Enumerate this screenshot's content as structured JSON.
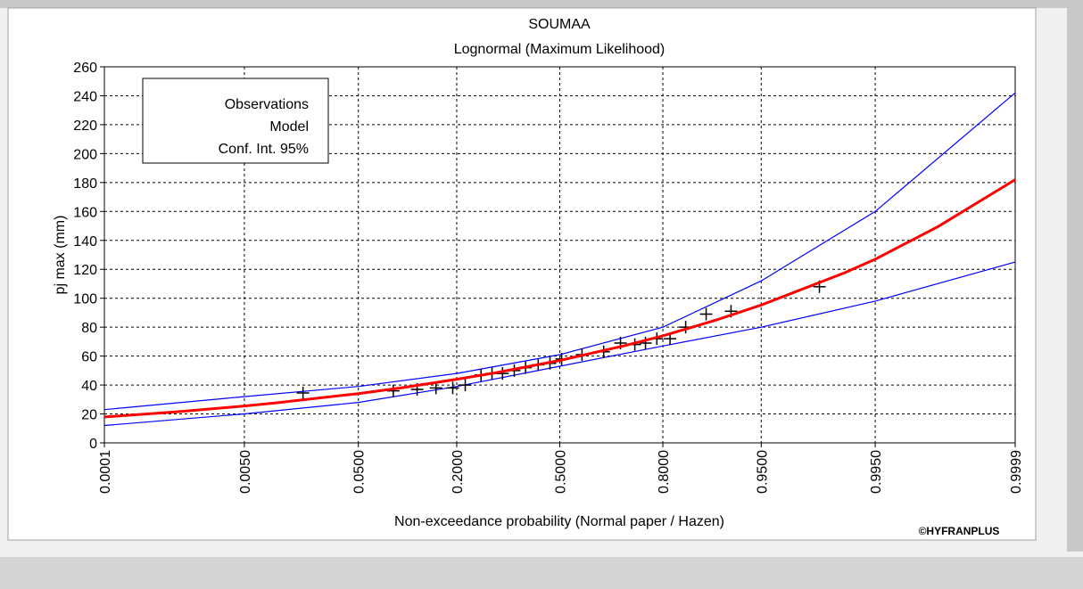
{
  "chart_data": {
    "type": "probability",
    "title": "SOUMAA",
    "subtitle": "Lognormal (Maximum Likelihood)",
    "xlabel": "Non-exceedance probability (Normal paper / Hazen)",
    "ylabel": "pj max (mm)",
    "credit": "©HYFRANPLUS",
    "xscale": "normal",
    "xlim": [
      0.0001,
      0.9999
    ],
    "xticks": [
      {
        "value": 0.0001,
        "label": "0.0001"
      },
      {
        "value": 0.005,
        "label": "0.0050"
      },
      {
        "value": 0.05,
        "label": "0.0500"
      },
      {
        "value": 0.2,
        "label": "0.2000"
      },
      {
        "value": 0.5,
        "label": "0.5000"
      },
      {
        "value": 0.8,
        "label": "0.8000"
      },
      {
        "value": 0.95,
        "label": "0.9500"
      },
      {
        "value": 0.995,
        "label": "0.9950"
      },
      {
        "value": 0.9999,
        "label": "0.9999"
      }
    ],
    "ylim": [
      0,
      260
    ],
    "yticks": [
      0,
      20,
      40,
      60,
      80,
      100,
      120,
      140,
      160,
      180,
      200,
      220,
      240,
      260
    ],
    "grid": true,
    "legend": "upper left",
    "series": [
      {
        "name": "Observations",
        "color": "#000000",
        "marker": "plus",
        "x": [
          0.018,
          0.087,
          0.122,
          0.156,
          0.191,
          0.22,
          0.26,
          0.29,
          0.32,
          0.355,
          0.39,
          0.43,
          0.468,
          0.506,
          0.572,
          0.64,
          0.69,
          0.73,
          0.758,
          0.786,
          0.816,
          0.848,
          0.884,
          0.919,
          0.983
        ],
        "values": [
          34.5,
          36,
          37,
          38,
          38,
          40,
          47,
          48,
          48,
          50,
          52,
          54,
          55,
          58,
          61,
          63,
          69,
          68,
          69,
          72,
          72,
          80,
          89,
          91,
          108
        ]
      },
      {
        "name": "Model",
        "color": "#ff0000",
        "x": [
          0.0001,
          0.001,
          0.005,
          0.01,
          0.05,
          0.1,
          0.2,
          0.3,
          0.5,
          0.7,
          0.8,
          0.9,
          0.95,
          0.99,
          0.995,
          0.999,
          0.9999
        ],
        "values": [
          17.9,
          21.7,
          25.5,
          27.6,
          34.1,
          38.2,
          44,
          48.4,
          57,
          67.1,
          74,
          85,
          95.3,
          117.6,
          127,
          149.6,
          182
        ]
      },
      {
        "name": "Conf. Int. 95%",
        "color": "#0000ff",
        "x": [
          0.0001,
          0.005,
          0.05,
          0.2,
          0.5,
          0.8,
          0.95,
          0.995,
          0.9999
        ],
        "upper": [
          23,
          32,
          39,
          48,
          61,
          80,
          112,
          160,
          242
        ],
        "lower": [
          12,
          20,
          28,
          39,
          53,
          67,
          80,
          98,
          125
        ]
      }
    ]
  }
}
